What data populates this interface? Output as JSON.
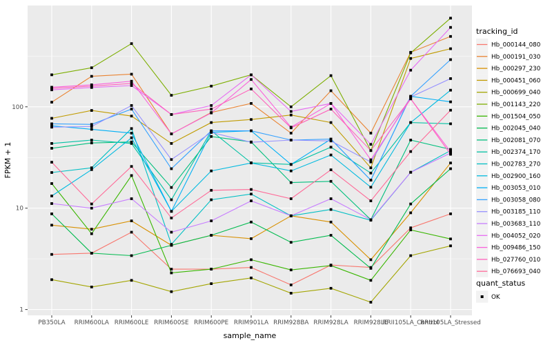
{
  "figure": {
    "background": "#FFFFFF",
    "panel_bg": "#EBEBEB",
    "grid_color": "#FFFFFF",
    "point_color": "#000000",
    "axis_text_color": "#4D4D4D"
  },
  "axes": {
    "x_title": "sample_name",
    "y_title": "FPKM + 1",
    "y_tick_labels": [
      "1",
      "10",
      "100"
    ],
    "y_tick_values": [
      1,
      10,
      100
    ],
    "y_minor_values": [
      3.1623,
      31.623,
      316.23
    ]
  },
  "legend": {
    "tracking_title": "tracking_id",
    "quant_title": "quant_status",
    "quant_items": [
      {
        "label": "OK",
        "marker": "black-square"
      }
    ]
  },
  "chart_data": {
    "type": "line",
    "title": "",
    "xlabel": "sample_name",
    "ylabel": "FPKM + 1",
    "y_scale": "log10",
    "ylim": [
      0.88,
      1000
    ],
    "grid": "on",
    "legend_position": "right",
    "point_marker": "black-square",
    "quant_status": "OK",
    "categories": [
      "PB350LA",
      "RRIM600LA",
      "RRIM600LE",
      "RRIM600SE",
      "RRIM600PE",
      "RRIM901LA",
      "RRIM928BA",
      "RRIM928LA",
      "RRIM928LE",
      "RRII105LA_Control",
      "RRII105LA_Stressed"
    ],
    "series": [
      {
        "name": "Hb_000144_080",
        "color": "#F8766D",
        "values": [
          3.5,
          3.6,
          5.8,
          2.5,
          2.5,
          2.6,
          1.75,
          2.75,
          2.6,
          6.4,
          8.8
        ]
      },
      {
        "name": "Hb_000191_030",
        "color": "#EA8331",
        "values": [
          111,
          200,
          210,
          54,
          88,
          108,
          55,
          144,
          55,
          345,
          495
        ]
      },
      {
        "name": "Hb_000297_230",
        "color": "#D89000",
        "values": [
          6.8,
          6.2,
          7.5,
          4.3,
          5.4,
          5.0,
          8.4,
          7.3,
          3.1,
          9.0,
          27.9
        ]
      },
      {
        "name": "Hb_000451_060",
        "color": "#C09B00",
        "values": [
          77,
          92,
          81,
          43.5,
          70,
          75,
          83,
          70,
          25,
          300,
          374
        ]
      },
      {
        "name": "Hb_000699_040",
        "color": "#A3A500",
        "values": [
          1.97,
          1.67,
          1.94,
          1.5,
          1.8,
          2.05,
          1.45,
          1.62,
          1.18,
          3.4,
          4.25
        ]
      },
      {
        "name": "Hb_001143_220",
        "color": "#7CAE00",
        "values": [
          207,
          243,
          420,
          130,
          160,
          207,
          100,
          203,
          37,
          340,
          750
        ]
      },
      {
        "name": "Hb_001504_050",
        "color": "#39B600",
        "values": [
          17.5,
          5.6,
          21,
          2.3,
          2.5,
          3.1,
          2.46,
          2.72,
          1.94,
          6.1,
          4.97
        ]
      },
      {
        "name": "Hb_002045_040",
        "color": "#00BB4E",
        "values": [
          8.8,
          3.6,
          3.4,
          4.3,
          5.4,
          7.3,
          4.6,
          5.4,
          2.55,
          11,
          24.5
        ]
      },
      {
        "name": "Hb_002081_070",
        "color": "#00BF7D",
        "values": [
          39,
          44,
          45,
          16,
          51,
          45,
          17.9,
          18.4,
          7.7,
          47,
          38
        ]
      },
      {
        "name": "Hb_002374_170",
        "color": "#00C1A3",
        "values": [
          43.5,
          47,
          43.5,
          12.1,
          58,
          28,
          27,
          40,
          22.2,
          70,
          68
        ]
      },
      {
        "name": "Hb_002783_270",
        "color": "#00BFC4",
        "values": [
          22.5,
          25,
          61,
          4.4,
          12.1,
          13.8,
          8.4,
          9.7,
          7.6,
          22.6,
          37
        ]
      },
      {
        "name": "Hb_002900_160",
        "color": "#00BAE0",
        "values": [
          13.2,
          24,
          49.5,
          9.3,
          23.3,
          27.9,
          23.3,
          33.5,
          16.1,
          70,
          146
        ]
      },
      {
        "name": "Hb_003053_010",
        "color": "#00B0F6",
        "values": [
          65,
          60,
          55,
          9.3,
          56,
          58,
          27,
          48,
          18.9,
          127,
          112
        ]
      },
      {
        "name": "Hb_003058_080",
        "color": "#35A2FF",
        "values": [
          68,
          67,
          95,
          24.5,
          58,
          58,
          47,
          48,
          18.9,
          127,
          292
        ]
      },
      {
        "name": "Hb_003185_110",
        "color": "#9590FF",
        "values": [
          63,
          64,
          103,
          30.2,
          56,
          44.7,
          47,
          46,
          28.6,
          125,
          190
        ]
      },
      {
        "name": "Hb_003683_110",
        "color": "#C77CFF",
        "values": [
          11.1,
          10,
          12.4,
          5.8,
          7.5,
          11.8,
          8.4,
          12.4,
          7.7,
          22.6,
          35
        ]
      },
      {
        "name": "Hb_004052_020",
        "color": "#E76BF3",
        "values": [
          147,
          155,
          162,
          84,
          103,
          207,
          90,
          108,
          42.6,
          230,
          607
        ]
      },
      {
        "name": "Hb_009486_150",
        "color": "#FA62DB",
        "values": [
          156,
          165,
          179,
          54,
          87,
          186,
          63,
          108,
          30,
          120,
          36
        ]
      },
      {
        "name": "Hb_027760_010",
        "color": "#FF62BC",
        "values": [
          152,
          160,
          170,
          84,
          95,
          150,
          62,
          95,
          37,
          120,
          34
        ]
      },
      {
        "name": "Hb_076693_040",
        "color": "#FF6A98",
        "values": [
          28.4,
          11,
          25.8,
          8.0,
          15,
          15.3,
          12.4,
          23.9,
          11.8,
          36.2,
          92.6
        ]
      }
    ]
  }
}
